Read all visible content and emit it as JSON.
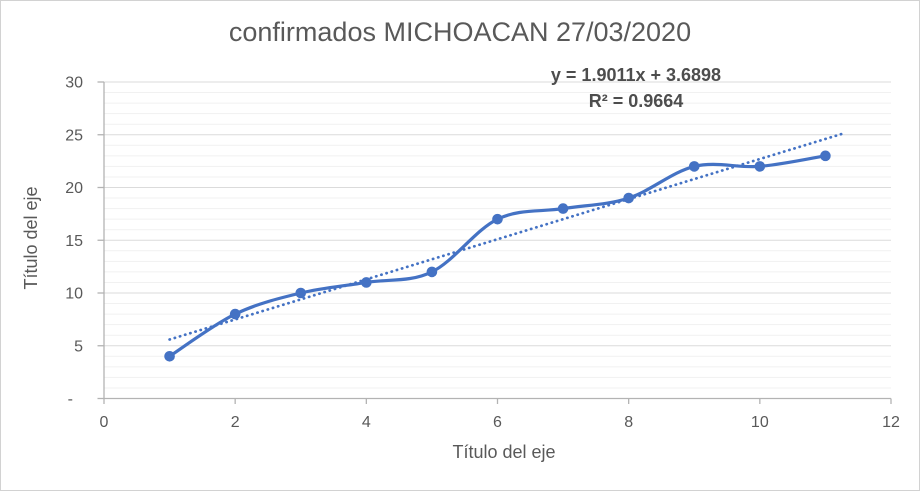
{
  "chart_data": {
    "type": "line",
    "title": "confirmados MICHOACAN 27/03/2020",
    "xlabel": "Título del eje",
    "ylabel": "Título del eje",
    "x": [
      1,
      2,
      3,
      4,
      5,
      6,
      7,
      8,
      9,
      10,
      11
    ],
    "series": [
      {
        "name": "confirmados",
        "values": [
          4,
          8,
          10,
          11,
          12,
          17,
          18,
          19,
          22,
          22,
          23
        ],
        "color": "#4472C4",
        "smooth": true,
        "markers": true
      }
    ],
    "trendline": {
      "type": "linear",
      "slope": 1.9011,
      "intercept": 3.6898,
      "x_start": 1,
      "x_end": 11.25,
      "style": "dotted",
      "color": "#4472C4",
      "equation_label": "y = 1.9011x + 3.6898",
      "r2_label": "R² = 0.9664"
    },
    "xlim": [
      0,
      12
    ],
    "ylim": [
      0,
      30
    ],
    "x_tick_values": [
      0,
      2,
      4,
      6,
      8,
      10,
      12
    ],
    "x_tick_labels": [
      "0",
      "2",
      "4",
      "6",
      "8",
      "10",
      "12"
    ],
    "y_tick_values": [
      30,
      25,
      20,
      15,
      10,
      5,
      0
    ],
    "y_tick_labels": [
      "30",
      "25",
      "20",
      "15",
      "10",
      "5",
      "-"
    ],
    "minor_grid_step": 1,
    "major_grid_step": 5,
    "grid": true,
    "legend": "none",
    "colors": {
      "series": "#4472C4",
      "trendline": "#4472C4",
      "minor_gridline": "#F1F1F1",
      "major_gridline": "#DBDBDB",
      "axis_line": "#B3B3B3",
      "tick_label": "#595959",
      "title": "#595959",
      "equation_text": "#4D4D4D"
    }
  }
}
